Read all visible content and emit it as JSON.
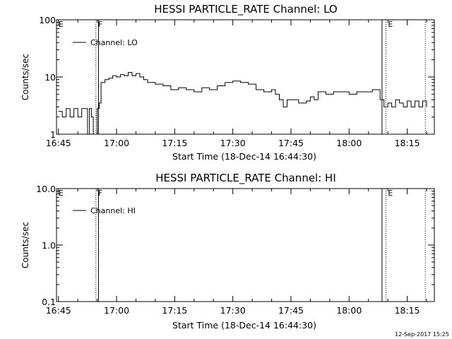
{
  "footer_timestamp": "12-Sep-2017 15:25",
  "chart_data": [
    {
      "type": "line",
      "title": "HESSI PARTICLE_RATE Channel: LO",
      "xlabel": "Start Time (18-Dec-14 16:44:30)",
      "ylabel": "Counts/sec",
      "yscale": "log",
      "ylim": [
        1,
        100
      ],
      "y_ticks": [
        "1",
        "10",
        "100"
      ],
      "x_ticks": [
        "16:45",
        "17:00",
        "17:15",
        "17:30",
        "17:45",
        "18:00",
        "18:15"
      ],
      "x_range": [
        "16:44:30",
        "18:22:00"
      ],
      "legend": {
        "label": "Channel: LO",
        "placement": "top-left"
      },
      "flags": [
        {
          "label": "E",
          "time": "16:44:30",
          "style": "solid"
        },
        {
          "label": "F",
          "time": "16:54:40",
          "style": "dotted"
        },
        {
          "label": "",
          "time": "16:55:20",
          "style": "solid"
        },
        {
          "label": "",
          "time": "18:08:30",
          "style": "solid"
        },
        {
          "label": "E",
          "time": "18:09:30",
          "style": "dotted"
        },
        {
          "label": "",
          "time": "18:19:40",
          "style": "dotted"
        }
      ],
      "series": [
        {
          "name": "Channel: LO",
          "x": [
            "16:45:00",
            "16:46:00",
            "16:47:00",
            "16:48:00",
            "16:49:00",
            "16:50:00",
            "16:51:00",
            "16:52:00",
            "16:52:30",
            "16:53:00",
            "16:53:30",
            "16:54:00",
            "16:54:30",
            "16:55:00",
            "16:55:30",
            "16:56:00",
            "16:57:00",
            "16:58:00",
            "16:59:00",
            "17:00:00",
            "17:01:00",
            "17:02:00",
            "17:03:00",
            "17:04:00",
            "17:05:00",
            "17:06:00",
            "17:07:00",
            "17:08:00",
            "17:10:00",
            "17:12:00",
            "17:14:00",
            "17:16:00",
            "17:18:00",
            "17:20:00",
            "17:22:00",
            "17:24:00",
            "17:26:00",
            "17:28:00",
            "17:30:00",
            "17:32:00",
            "17:34:00",
            "17:36:00",
            "17:38:00",
            "17:40:00",
            "17:41:00",
            "17:42:00",
            "17:43:00",
            "17:44:00",
            "17:45:00",
            "17:47:00",
            "17:49:00",
            "17:50:00",
            "17:51:00",
            "17:52:00",
            "17:54:00",
            "17:56:00",
            "17:58:00",
            "18:00:00",
            "18:02:00",
            "18:04:00",
            "18:06:00",
            "18:08:00",
            "18:09:00",
            "18:10:00",
            "18:11:00",
            "18:12:00",
            "18:13:00",
            "18:14:00",
            "18:15:00",
            "18:16:00",
            "18:17:00",
            "18:18:00",
            "18:19:00",
            "18:20:00"
          ],
          "y": [
            2.5,
            2.0,
            2.8,
            2.0,
            2.8,
            2.0,
            2.8,
            2.8,
            1.0,
            2.8,
            2.0,
            1.0,
            1.0,
            2.8,
            3.5,
            8.0,
            9.0,
            9.5,
            10.5,
            10.0,
            11.0,
            10.5,
            12.0,
            10.5,
            11.5,
            10.0,
            9.0,
            8.0,
            7.5,
            7.0,
            6.0,
            6.5,
            6.0,
            5.5,
            6.5,
            6.0,
            7.0,
            8.0,
            8.5,
            8.0,
            7.5,
            6.0,
            5.5,
            6.0,
            5.0,
            4.0,
            3.0,
            4.0,
            4.0,
            3.5,
            3.8,
            4.5,
            4.0,
            5.5,
            5.0,
            5.5,
            5.5,
            5.0,
            5.5,
            5.5,
            6.0,
            4.0,
            3.0,
            3.5,
            3.0,
            4.0,
            3.5,
            3.0,
            3.8,
            3.0,
            3.8,
            3.0,
            3.8,
            3.0
          ]
        }
      ]
    },
    {
      "type": "line",
      "title": "HESSI PARTICLE_RATE Channel: HI",
      "xlabel": "Start Time (18-Dec-14 16:44:30)",
      "ylabel": "Counts/sec",
      "yscale": "log",
      "ylim": [
        0.1,
        10.0
      ],
      "y_ticks": [
        "0.1",
        "1.0",
        "10.0"
      ],
      "x_ticks": [
        "16:45",
        "17:00",
        "17:15",
        "17:30",
        "17:45",
        "18:00",
        "18:15"
      ],
      "x_range": [
        "16:44:30",
        "18:22:00"
      ],
      "legend": {
        "label": "Channel: HI",
        "placement": "top-left"
      },
      "flags": [
        {
          "label": "E",
          "time": "16:44:30",
          "style": "solid"
        },
        {
          "label": "F",
          "time": "16:54:40",
          "style": "dotted"
        },
        {
          "label": "",
          "time": "16:55:20",
          "style": "solid"
        },
        {
          "label": "",
          "time": "18:08:30",
          "style": "solid"
        },
        {
          "label": "E",
          "time": "18:09:30",
          "style": "dotted"
        },
        {
          "label": "",
          "time": "18:19:40",
          "style": "dotted"
        }
      ],
      "series": [
        {
          "name": "Channel: HI",
          "x": [],
          "y": []
        }
      ]
    }
  ]
}
